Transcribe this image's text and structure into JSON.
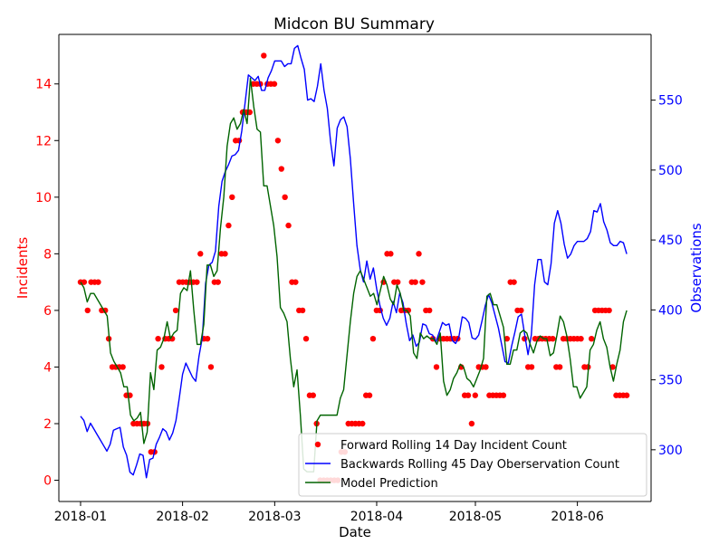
{
  "chart_data": {
    "type": "line",
    "title": "Midcon BU Summary",
    "xlabel": "Date",
    "ylabel_left": "Incidents",
    "ylabel_right": "Observations",
    "left_color": "#ff0000",
    "right_color": "#0000ff",
    "model_color": "#006400",
    "x_start": "2018-01-01",
    "x_end": "2018-06-16",
    "x_ticks": [
      "2018-01",
      "2018-02",
      "2018-03",
      "2018-04",
      "2018-05",
      "2018-06"
    ],
    "y_left_lim": [
      -0.75,
      15.75
    ],
    "y_left_ticks": [
      0,
      2,
      4,
      6,
      8,
      10,
      12,
      14
    ],
    "y_right_lim": [
      263,
      597
    ],
    "y_right_ticks": [
      300,
      350,
      400,
      450,
      500,
      550
    ],
    "grid": false,
    "legend_position": "bottom-right",
    "series": [
      {
        "name": "Forward Rolling 14 Day Incident Count",
        "axis": "left",
        "style": "points",
        "color": "#ff0000",
        "values": [
          7,
          7,
          6,
          7,
          7,
          7,
          6,
          6,
          5,
          4,
          4,
          4,
          4,
          3,
          3,
          2,
          2,
          2,
          2,
          2,
          1,
          1,
          5,
          4,
          5,
          5,
          5,
          6,
          7,
          7,
          7,
          7,
          7,
          7,
          8,
          5,
          5,
          4,
          7,
          7,
          8,
          8,
          9,
          10,
          12,
          12,
          13,
          13,
          13,
          14,
          14,
          14,
          15,
          14,
          14,
          14,
          12,
          11,
          10,
          9,
          7,
          7,
          6,
          6,
          5,
          3,
          3,
          2,
          0,
          0,
          0,
          0,
          0,
          0,
          1,
          1,
          2,
          2,
          2,
          2,
          2,
          3,
          3,
          5,
          6,
          6,
          7,
          8,
          8,
          7,
          7,
          6,
          6,
          6,
          7,
          7,
          8,
          7,
          6,
          6,
          5,
          4,
          5,
          5,
          5,
          5,
          5,
          5,
          4,
          3,
          3,
          2,
          3,
          4,
          4,
          4,
          3,
          3,
          3,
          3,
          3,
          5,
          7,
          7,
          6,
          6,
          5,
          4,
          4,
          5,
          5,
          5,
          5,
          5,
          5,
          4,
          4,
          5,
          5,
          5,
          5,
          5,
          5,
          4,
          4,
          5,
          6,
          6,
          6,
          6,
          6,
          4,
          3,
          3,
          3,
          3
        ]
      },
      {
        "name": "Backwards Rolling 45 Day Oberservation Count",
        "axis": "right",
        "style": "line",
        "color": "#0000ff",
        "values": [
          324,
          321,
          313,
          319,
          315,
          311,
          307,
          303,
          299,
          304,
          314,
          315,
          316,
          302,
          296,
          284,
          282,
          289,
          297,
          296,
          280,
          293,
          294,
          304,
          309,
          315,
          313,
          307,
          312,
          321,
          337,
          354,
          362,
          357,
          352,
          349,
          367,
          380,
          419,
          432,
          434,
          442,
          474,
          492,
          499,
          504,
          510,
          511,
          514,
          528,
          548,
          568,
          566,
          564,
          567,
          557,
          557,
          566,
          571,
          578,
          578,
          578,
          574,
          576,
          576,
          587,
          589,
          580,
          572,
          550,
          551,
          549,
          560,
          576,
          557,
          544,
          520,
          503,
          530,
          536,
          538,
          531,
          508,
          476,
          446,
          429,
          420,
          435,
          422,
          430,
          415,
          403,
          394,
          389,
          394,
          406,
          398,
          412,
          405,
          390,
          378,
          382,
          374,
          377,
          390,
          389,
          383,
          382,
          377,
          384,
          391,
          389,
          390,
          378,
          376,
          381,
          395,
          394,
          391,
          380,
          379,
          382,
          392,
          403,
          411,
          405,
          396,
          387,
          375,
          363,
          362,
          374,
          384,
          395,
          397,
          382,
          368,
          382,
          418,
          436,
          436,
          420,
          418,
          433,
          462,
          471,
          462,
          447,
          437,
          440,
          446,
          449,
          449,
          449,
          451,
          456,
          471,
          470,
          476,
          463,
          457,
          448,
          446,
          446,
          449,
          448,
          440
        ]
      },
      {
        "name": "Model Prediction",
        "axis": "left",
        "style": "line",
        "color": "#006400",
        "values": [
          7,
          6.8,
          6.3,
          6.6,
          6.6,
          6.4,
          6.2,
          6,
          5.8,
          4.5,
          4.2,
          4,
          3.8,
          3.3,
          3.3,
          2.3,
          2.1,
          2.2,
          2.4,
          1.3,
          1.7,
          3.8,
          3.2,
          4.6,
          4.7,
          5,
          5.6,
          5,
          5.2,
          5.3,
          6.6,
          6.8,
          6.7,
          7.4,
          6,
          4.8,
          4.8,
          5.5,
          7.6,
          7.6,
          7.2,
          7.4,
          8.9,
          10,
          11.8,
          12.6,
          12.8,
          12.4,
          12.6,
          13.1,
          12.6,
          14.2,
          13.2,
          12.4,
          12.3,
          10.4,
          10.4,
          9.7,
          9,
          7.9,
          6.1,
          5.9,
          5.6,
          4.3,
          3.3,
          3.9,
          2.3,
          0.4,
          0.3,
          0.3,
          0.3,
          2.1,
          2.3,
          2.3,
          2.3,
          2.3,
          2.3,
          2.3,
          2.9,
          3.2,
          4.4,
          5.6,
          6.6,
          7.2,
          7.4,
          7.1,
          6.8,
          6.5,
          6.6,
          6.2,
          6.7,
          7.2,
          6.9,
          6.4,
          6.2,
          6.9,
          6.6,
          6,
          6,
          5.8,
          4.5,
          4.3,
          5.2,
          5,
          5.1,
          5,
          5,
          4.8,
          5.2,
          3.5,
          3,
          3.2,
          3.6,
          3.8,
          4.1,
          4,
          3.6,
          3.5,
          3.3,
          3.6,
          3.9,
          4.3,
          6.5,
          6.6,
          6.2,
          6.2,
          5.8,
          5.4,
          4.1,
          4.1,
          4.6,
          4.6,
          5.2,
          5.3,
          5.2,
          4.8,
          4.5,
          4.9,
          5.1,
          5,
          5,
          4.4,
          4.5,
          5.1,
          5.8,
          5.6,
          5.1,
          4.3,
          3.3,
          3.3,
          2.9,
          3.1,
          3.3,
          4.6,
          4.8,
          5.3,
          5.6,
          5,
          4.7,
          4,
          3.5,
          4.1,
          4.6,
          5.6,
          6
        ]
      }
    ]
  }
}
